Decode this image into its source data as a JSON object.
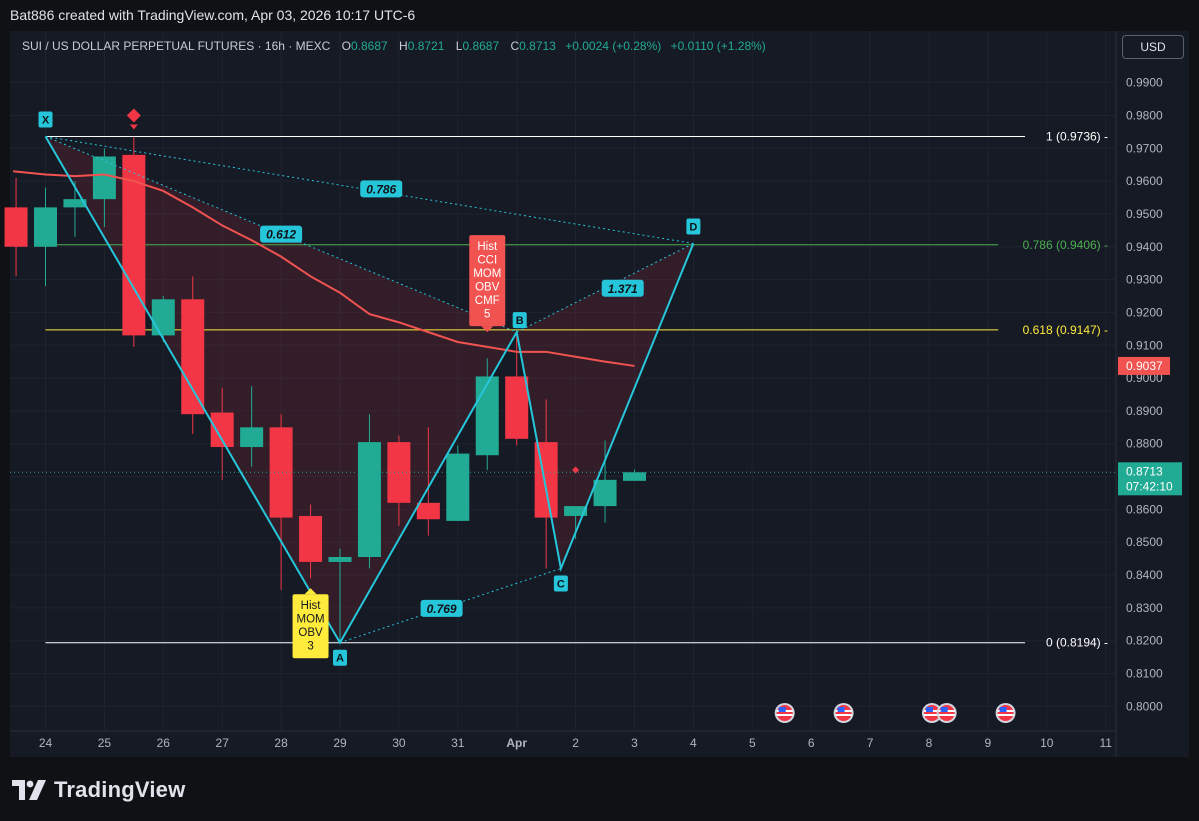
{
  "header": {
    "credit": "Bat886 created with TradingView.com, Apr 03, 2026 10:17 UTC-6"
  },
  "legend": {
    "symbol": "SUI / US DOLLAR PERPETUAL FUTURES · 16h · MEXC",
    "open_label": "O",
    "open": "0.8687",
    "high_label": "H",
    "high": "0.8721",
    "low_label": "L",
    "low": "0.8687",
    "close_label": "C",
    "close": "0.8713",
    "change": "+0.0024 (+0.28%)",
    "change2": "+0.0110 (+1.28%)"
  },
  "currency": "USD",
  "footer": {
    "logo_text": "TradingView"
  },
  "colors": {
    "up": "#22ab94",
    "down": "#f23645",
    "pattern": "#26c6da",
    "ma": "#f05350",
    "fib_1": "#ffffff",
    "fib_786": "#4caf50",
    "fib_618": "#ffeb3b",
    "fib_0": "#ffffff",
    "label_red": "#f05350",
    "label_yellow": "#ffeb3b"
  },
  "chart_data": {
    "type": "candlestick",
    "ylim": [
      0.7925,
      0.9975
    ],
    "y_ticks": [
      "0.8000",
      "0.8100",
      "0.8200",
      "0.8300",
      "0.8400",
      "0.8500",
      "0.8600",
      "0.8700",
      "0.8800",
      "0.8900",
      "0.9000",
      "0.9100",
      "0.9200",
      "0.9300",
      "0.9400",
      "0.9500",
      "0.9600",
      "0.9700",
      "0.9800",
      "0.9900"
    ],
    "x_ticks": [
      {
        "label": "24",
        "t": 0
      },
      {
        "label": "25",
        "t": 2
      },
      {
        "label": "26",
        "t": 4
      },
      {
        "label": "27",
        "t": 6
      },
      {
        "label": "28",
        "t": 8
      },
      {
        "label": "29",
        "t": 10
      },
      {
        "label": "30",
        "t": 12
      },
      {
        "label": "31",
        "t": 14
      },
      {
        "label": "Apr",
        "t": 16
      },
      {
        "label": "2",
        "t": 18
      },
      {
        "label": "3",
        "t": 20
      },
      {
        "label": "4",
        "t": 22
      },
      {
        "label": "5",
        "t": 24
      },
      {
        "label": "6",
        "t": 26
      },
      {
        "label": "7",
        "t": 28
      },
      {
        "label": "8",
        "t": 30
      },
      {
        "label": "9",
        "t": 32
      },
      {
        "label": "10",
        "t": 34
      },
      {
        "label": "11",
        "t": 36
      }
    ],
    "candles": [
      {
        "t": -1,
        "o": 0.952,
        "h": 0.961,
        "l": 0.931,
        "c": 0.94
      },
      {
        "t": 0,
        "o": 0.94,
        "h": 0.958,
        "l": 0.928,
        "c": 0.952
      },
      {
        "t": 1,
        "o": 0.952,
        "h": 0.96,
        "l": 0.943,
        "c": 0.9545
      },
      {
        "t": 2,
        "o": 0.9545,
        "h": 0.97,
        "l": 0.946,
        "c": 0.9675
      },
      {
        "t": 3,
        "o": 0.968,
        "h": 0.9735,
        "l": 0.9095,
        "c": 0.913
      },
      {
        "t": 4,
        "o": 0.913,
        "h": 0.925,
        "l": 0.911,
        "c": 0.924
      },
      {
        "t": 5,
        "o": 0.924,
        "h": 0.931,
        "l": 0.883,
        "c": 0.889
      },
      {
        "t": 6,
        "o": 0.8895,
        "h": 0.897,
        "l": 0.869,
        "c": 0.879
      },
      {
        "t": 7,
        "o": 0.879,
        "h": 0.8975,
        "l": 0.873,
        "c": 0.885
      },
      {
        "t": 8,
        "o": 0.885,
        "h": 0.889,
        "l": 0.8355,
        "c": 0.8575
      },
      {
        "t": 9,
        "o": 0.858,
        "h": 0.8615,
        "l": 0.839,
        "c": 0.844
      },
      {
        "t": 10,
        "o": 0.844,
        "h": 0.848,
        "l": 0.8194,
        "c": 0.8455
      },
      {
        "t": 11,
        "o": 0.8455,
        "h": 0.889,
        "l": 0.842,
        "c": 0.8805
      },
      {
        "t": 12,
        "o": 0.8805,
        "h": 0.8825,
        "l": 0.855,
        "c": 0.862
      },
      {
        "t": 13,
        "o": 0.862,
        "h": 0.885,
        "l": 0.852,
        "c": 0.857
      },
      {
        "t": 14,
        "o": 0.8565,
        "h": 0.8795,
        "l": 0.8565,
        "c": 0.877
      },
      {
        "t": 15,
        "o": 0.8765,
        "h": 0.906,
        "l": 0.872,
        "c": 0.9005
      },
      {
        "t": 16,
        "o": 0.9005,
        "h": 0.914,
        "l": 0.8795,
        "c": 0.8815
      },
      {
        "t": 17,
        "o": 0.8805,
        "h": 0.8935,
        "l": 0.842,
        "c": 0.8575
      },
      {
        "t": 18,
        "o": 0.858,
        "h": 0.861,
        "l": 0.851,
        "c": 0.861
      },
      {
        "t": 19,
        "o": 0.861,
        "h": 0.881,
        "l": 0.856,
        "c": 0.869
      },
      {
        "t": 20,
        "o": 0.8687,
        "h": 0.8721,
        "l": 0.8687,
        "c": 0.8713
      }
    ],
    "moving_average": [
      {
        "t": -1.1,
        "v": 0.963
      },
      {
        "t": 0,
        "v": 0.962
      },
      {
        "t": 1,
        "v": 0.9615
      },
      {
        "t": 2,
        "v": 0.962
      },
      {
        "t": 3,
        "v": 0.96
      },
      {
        "t": 4,
        "v": 0.957
      },
      {
        "t": 5,
        "v": 0.952
      },
      {
        "t": 6,
        "v": 0.9465
      },
      {
        "t": 7,
        "v": 0.942
      },
      {
        "t": 8,
        "v": 0.937
      },
      {
        "t": 9,
        "v": 0.931
      },
      {
        "t": 10,
        "v": 0.926
      },
      {
        "t": 11,
        "v": 0.9195
      },
      {
        "t": 12,
        "v": 0.917
      },
      {
        "t": 13,
        "v": 0.914
      },
      {
        "t": 14,
        "v": 0.911
      },
      {
        "t": 15,
        "v": 0.9095
      },
      {
        "t": 16,
        "v": 0.908
      },
      {
        "t": 17,
        "v": 0.908
      },
      {
        "t": 18,
        "v": 0.9065
      },
      {
        "t": 19,
        "v": 0.905
      },
      {
        "t": 20,
        "v": 0.9037
      }
    ],
    "ma_last_label": "0.9037",
    "price_label": "0.8713",
    "countdown_label": "07:42:10",
    "fib_levels": [
      {
        "label": "1 (0.9736)",
        "value": 0.9736,
        "t_start": 0,
        "color": "#ffffff"
      },
      {
        "label": "0.786 (0.9406)",
        "value": 0.9406,
        "t_start": 0,
        "color": "#4caf50"
      },
      {
        "label": "0.618 (0.9147)",
        "value": 0.9147,
        "t_start": 0,
        "color": "#ffeb3b"
      },
      {
        "label": "0 (0.8194)",
        "value": 0.8194,
        "t_start": 0,
        "color": "#ffffff"
      }
    ],
    "harmonic_pattern": {
      "points": [
        {
          "label": "X",
          "t": 0,
          "v": 0.9736
        },
        {
          "label": "A",
          "t": 10,
          "v": 0.8194
        },
        {
          "label": "B",
          "t": 16,
          "v": 0.914
        },
        {
          "label": "C",
          "t": 17.5,
          "v": 0.842
        },
        {
          "label": "D",
          "t": 22,
          "v": 0.941
        }
      ],
      "ratios": [
        {
          "label": "0.612",
          "t": 8,
          "v": 0.944
        },
        {
          "label": "0.786",
          "t": 11.4,
          "v": 0.9578
        },
        {
          "label": "1.371",
          "t": 19.6,
          "v": 0.9275
        },
        {
          "label": "0.769",
          "t": 13.45,
          "v": 0.83
        }
      ]
    },
    "divergence_labels": [
      {
        "text": [
          "Hist",
          "CCI",
          "MOM",
          "OBV",
          "CMF",
          "5"
        ],
        "t": 15,
        "v": 0.914,
        "color": "#f05350",
        "text_color": "#ffffff",
        "anchor": "above"
      },
      {
        "text": [
          "Hist",
          "MOM",
          "OBV",
          "3"
        ],
        "t": 9,
        "v": 0.836,
        "color": "#ffeb3b",
        "text_color": "#131722",
        "anchor": "below"
      }
    ],
    "signals": [
      {
        "t": 3,
        "v": 0.98,
        "color": "#f23645",
        "shape": "diamond-large"
      },
      {
        "t": 18,
        "v": 0.872,
        "color": "#f23645",
        "shape": "diamond-small"
      }
    ],
    "event_markers": [
      25.1,
      27.1,
      30.1,
      30.6,
      32.6
    ]
  }
}
